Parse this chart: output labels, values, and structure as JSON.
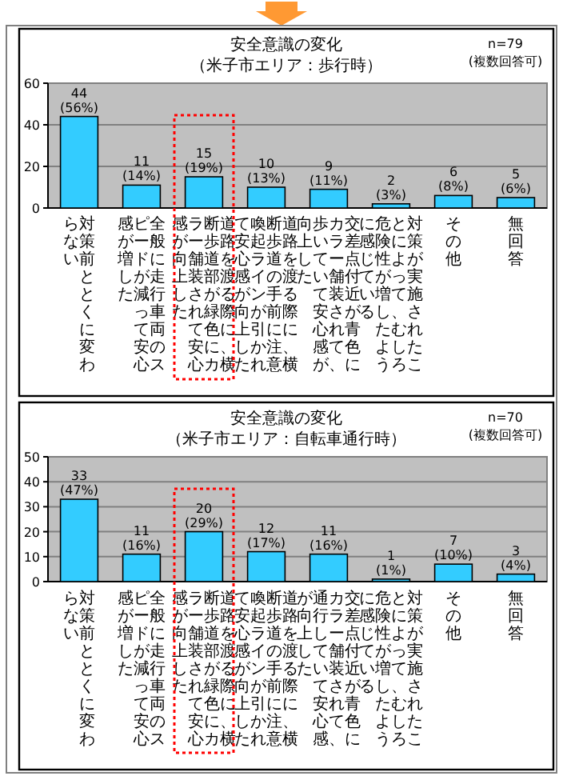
{
  "chart_data": [
    {
      "type": "bar",
      "title": "安全意識の変化",
      "subtitle": "（米子市エリア：歩行時）",
      "annotations": [
        "n=79",
        "(複数回答可)"
      ],
      "categories": [
        "対策前ととくに変わらない",
        "全般に走行車両のスピードが減って安心感が増した",
        "道路を渡る際に、横断歩道部が緑色にカラー舗装されて安心感が向上した",
        "道路を渡る際に、横断歩道の手前に注意喚起ラインが引かれて安心感が向上した",
        "交差点付近が青色にカラー舗装されて、歩いていて安心感が向上した",
        "対策が実施されたことによって、むしろ危険性が増したように感じている",
        "その他",
        "無回答"
      ],
      "values": [
        44,
        11,
        15,
        10,
        9,
        2,
        6,
        5
      ],
      "value_labels": [
        "44 (56%)",
        "11 (14%)",
        "15 (19%)",
        "10 (13%)",
        "9 (11%)",
        "2 (3%)",
        "6 (8%)",
        "5 (6%)"
      ],
      "color": "#33ccff",
      "ylim": [
        0,
        60
      ],
      "yticks": [
        0,
        20,
        40,
        60
      ],
      "grid": "y"
    },
    {
      "type": "bar",
      "title": "安全意識の変化",
      "subtitle": "（米子市エリア：自転車通行時）",
      "annotations": [
        "n=70",
        "(複数回答可)"
      ],
      "categories": [
        "対策前ととくに変わらない",
        "全般に走行車両のスピードが減って安心感が増した",
        "道路を渡る際に、横断歩道部が緑色にカラー舗装されて安心感が向上した",
        "道路を渡る際に、横断歩道の手前に注意喚起ラインが引かれて安心感が向上した",
        "交差点付近が青色にカラー舗装されて、通行していて安心感が向上した",
        "対策が実施されたことによって、むしろ危険性が増したように感じている",
        "その他",
        "無回答"
      ],
      "values": [
        33,
        11,
        20,
        12,
        11,
        1,
        7,
        3
      ],
      "value_labels": [
        "33 (47%)",
        "11 (16%)",
        "20 (29%)",
        "12 (17%)",
        "11 (16%)",
        "1 (1%)",
        "7 (10%)",
        "3 (4%)"
      ],
      "color": "#33ccff",
      "ylim": [
        0,
        50
      ],
      "yticks": [
        0,
        10,
        20,
        30,
        40,
        50
      ],
      "grid": "y"
    }
  ]
}
